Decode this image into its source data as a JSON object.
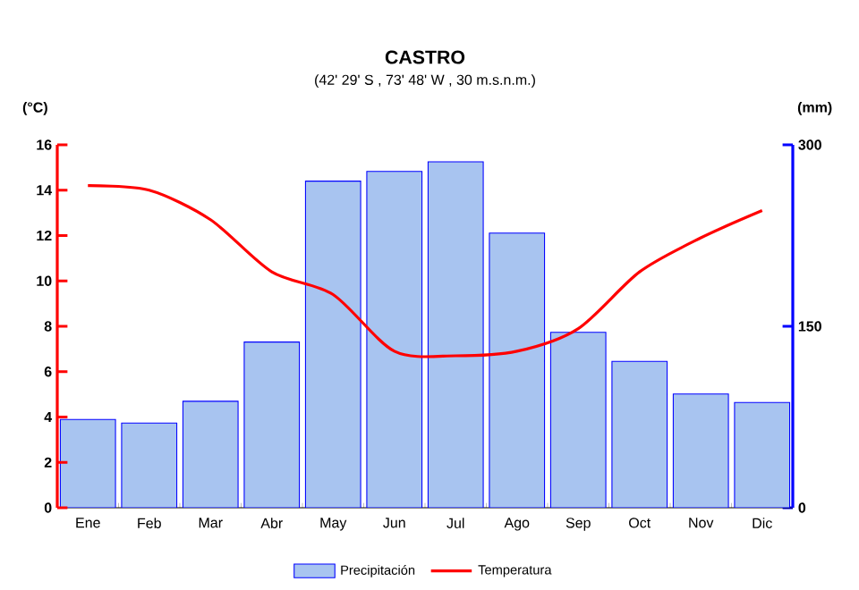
{
  "chart_data": {
    "type": "bar",
    "title": "CASTRO",
    "subtitle": "(42' 29' S , 73' 48' W , 30 m.s.n.m.)",
    "ylabel": "(°C)",
    "y2label": "(mm)",
    "categories": [
      "Ene",
      "Feb",
      "Mar",
      "Abr",
      "May",
      "Jun",
      "Jul",
      "Ago",
      "Sep",
      "Oct",
      "Nov",
      "Dic"
    ],
    "series": [
      {
        "name": "Precipitación",
        "axis": "y2",
        "color": "#a8c4f0",
        "values": [
          73,
          70,
          88,
          137,
          270,
          278,
          286,
          227,
          145,
          121,
          94,
          87
        ]
      },
      {
        "name": "Temperatura",
        "type": "line",
        "color": "#ff0000",
        "values": [
          14.2,
          14.0,
          12.7,
          10.4,
          9.4,
          6.9,
          6.7,
          6.9,
          7.9,
          10.4,
          11.9,
          13.1
        ]
      }
    ],
    "ylim": [
      0,
      16
    ],
    "yticks": [
      0,
      2,
      4,
      6,
      8,
      10,
      12,
      14,
      16
    ],
    "y2lim": [
      0,
      300
    ],
    "y2ticks": [
      0,
      150,
      300
    ],
    "legend": "bottom"
  }
}
